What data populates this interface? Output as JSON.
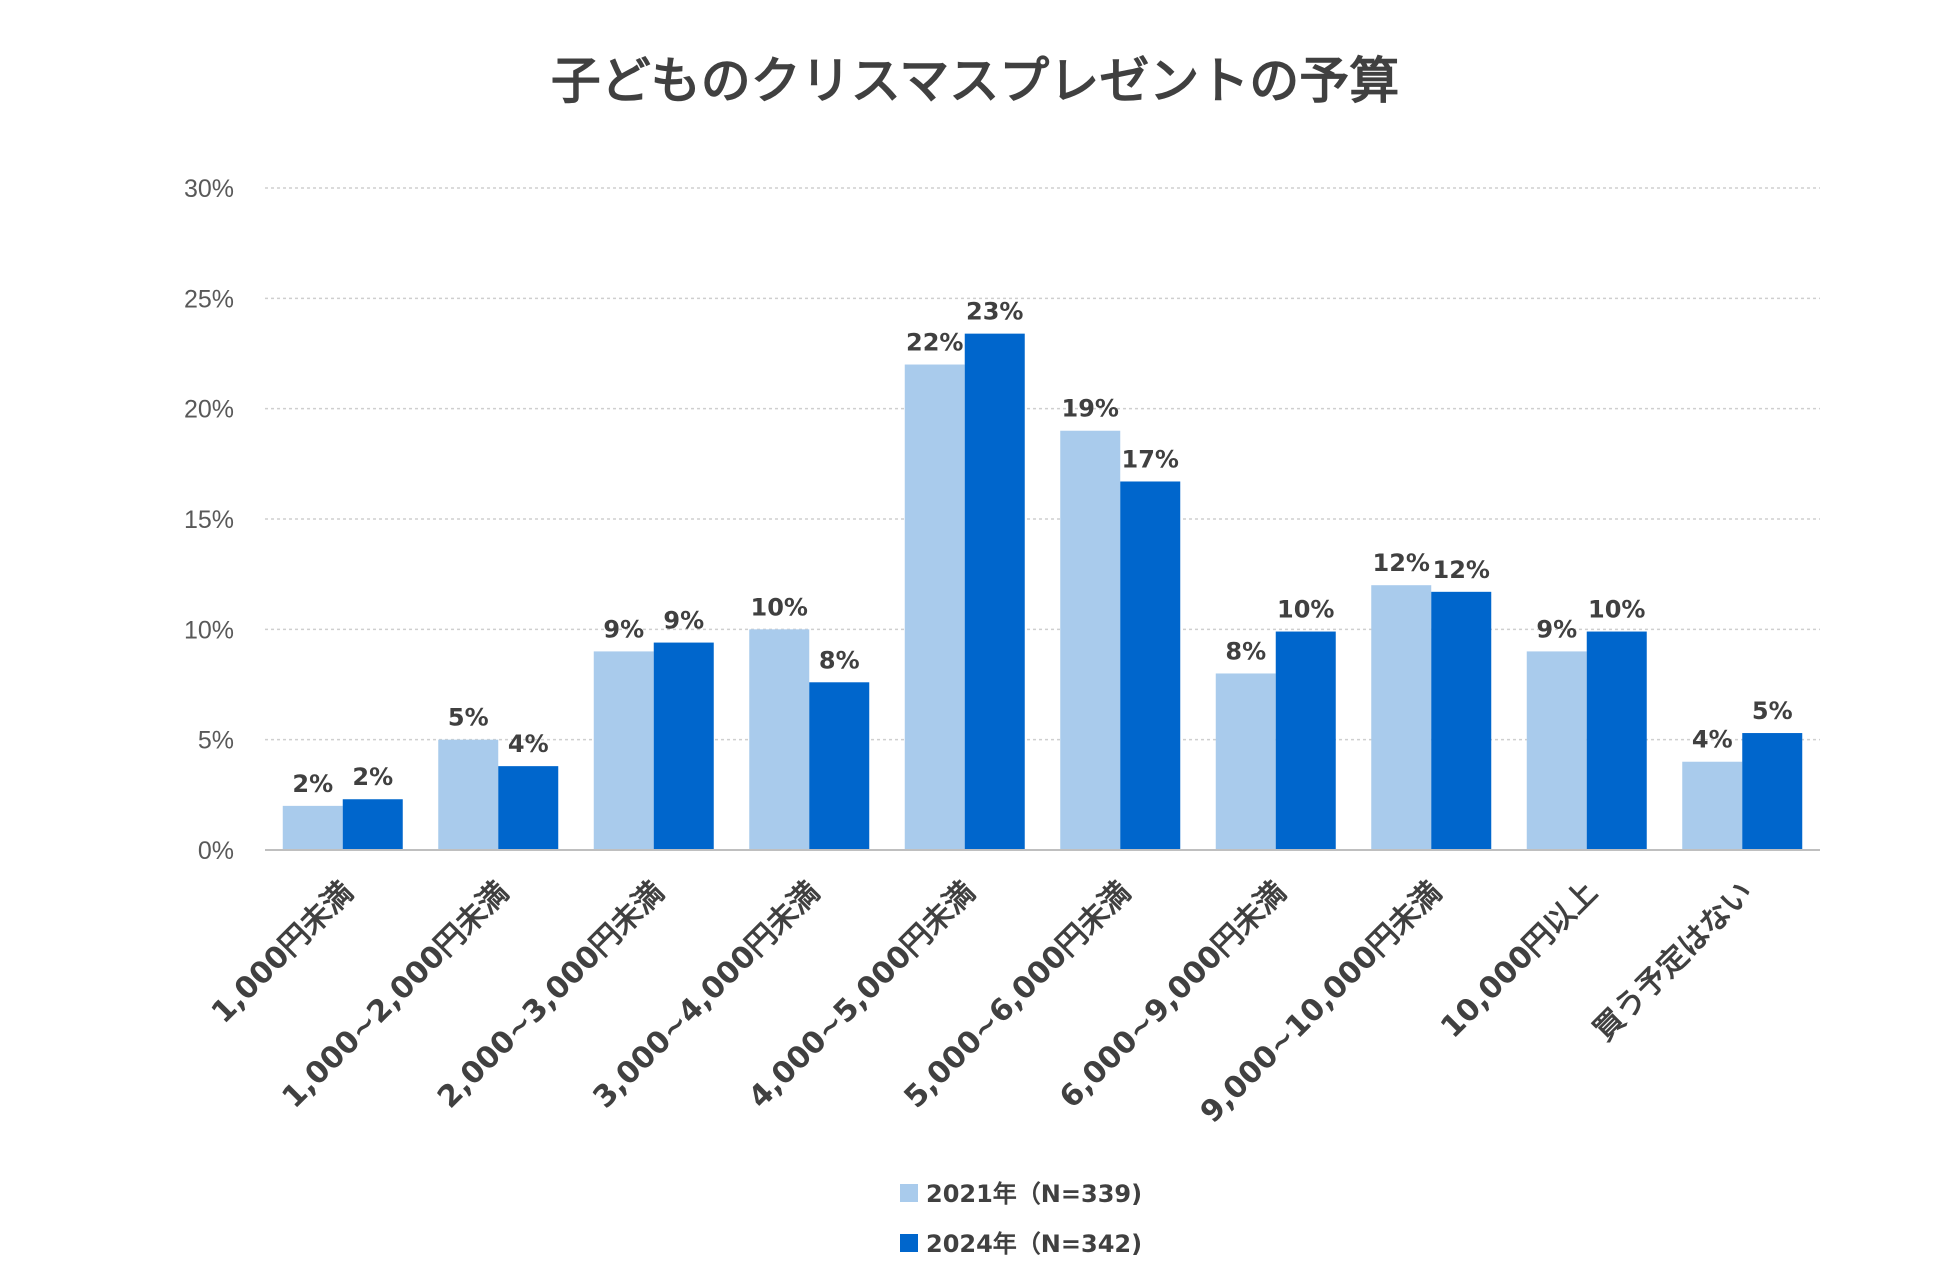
{
  "chart_data": {
    "type": "bar",
    "title": "子どものクリスマスプレゼントの予算",
    "xlabel": "",
    "ylabel": "",
    "ylim": [
      0,
      30
    ],
    "y_ticks": [
      "0%",
      "5%",
      "10%",
      "15%",
      "20%",
      "25%",
      "30%"
    ],
    "y_tick_values": [
      0,
      5,
      10,
      15,
      20,
      25,
      30
    ],
    "grid": true,
    "legend_position": "bottom",
    "categories": [
      "1,000円未満",
      "1,000~2,000円未満",
      "2,000~3,000円未満",
      "3,000~4,000円未満",
      "4,000~5,000円未満",
      "5,000~6,000円未満",
      "6,000~9,000円未満",
      "9,000~10,000円未満",
      "10,000円以上",
      "買う予定はない"
    ],
    "series": [
      {
        "name": "2021年（N=339)",
        "color": "#a9cbec",
        "values": [
          2.0,
          5.0,
          9.0,
          10.0,
          22.0,
          19.0,
          8.0,
          12.0,
          9.0,
          4.0
        ],
        "labels": [
          "2%",
          "5%",
          "9%",
          "10%",
          "22%",
          "19%",
          "8%",
          "12%",
          "9%",
          "4%"
        ]
      },
      {
        "name": "2024年（N=342)",
        "color": "#0066cc",
        "values": [
          2.3,
          3.8,
          9.4,
          7.6,
          23.4,
          16.7,
          9.9,
          11.7,
          9.9,
          5.3
        ],
        "labels": [
          "2%",
          "4%",
          "9%",
          "8%",
          "23%",
          "17%",
          "10%",
          "12%",
          "10%",
          "5%"
        ]
      }
    ]
  }
}
